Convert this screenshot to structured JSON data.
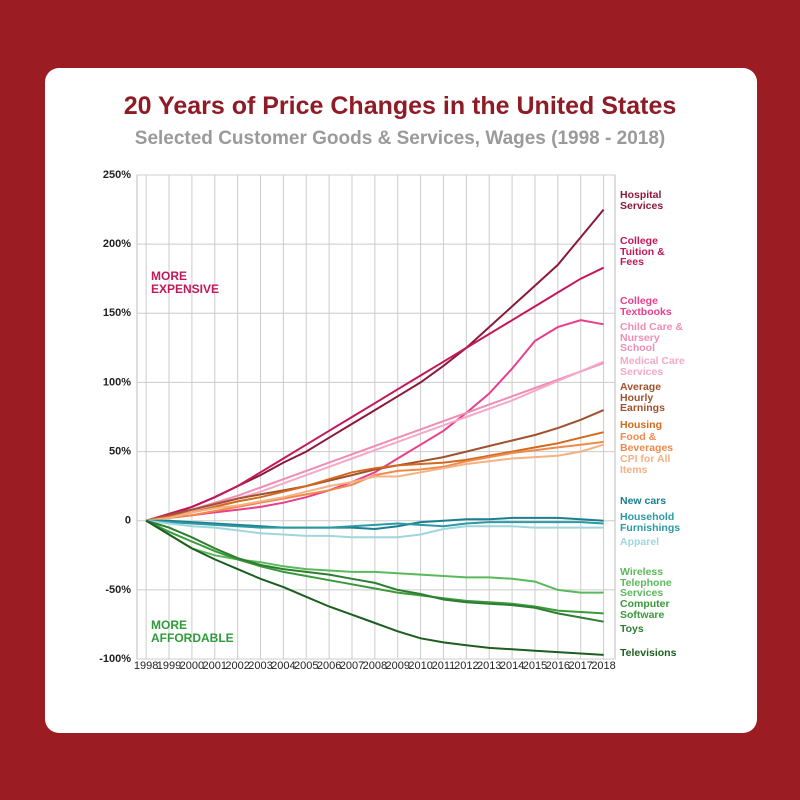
{
  "chart_data": {
    "type": "line",
    "title": "20 Years of Price Changes in the United States",
    "subtitle": "Selected Customer Goods & Services, Wages (1998 - 2018)",
    "annotations": [
      {
        "text": "MORE EXPENSIVE",
        "color": "#c2185b"
      },
      {
        "text": "MORE AFFORDABLE",
        "color": "#2e9a3a"
      }
    ],
    "x": [
      1998,
      1999,
      2000,
      2001,
      2002,
      2003,
      2004,
      2005,
      2006,
      2007,
      2008,
      2009,
      2010,
      2011,
      2012,
      2013,
      2014,
      2015,
      2016,
      2017,
      2018
    ],
    "xlim": [
      1997.6,
      2018.5
    ],
    "xticks": [
      1998,
      1999,
      2000,
      2001,
      2002,
      2003,
      2004,
      2005,
      2006,
      2007,
      2008,
      2009,
      2010,
      2011,
      2012,
      2013,
      2014,
      2015,
      2016,
      2017,
      2018
    ],
    "ylim": [
      -100,
      250
    ],
    "yticks": [
      {
        "value": -100,
        "label": "-100%"
      },
      {
        "value": -50,
        "label": "-50%"
      },
      0,
      {
        "value": 50,
        "label": "50%"
      },
      {
        "value": 100,
        "label": "100%"
      },
      {
        "value": 150,
        "label": "150%"
      },
      {
        "value": 200,
        "label": "200%"
      },
      {
        "value": 250,
        "label": "250%"
      }
    ],
    "grid": true,
    "series": [
      {
        "name": "Hospital Services",
        "color": "#8b1a3a",
        "values": [
          0,
          4,
          10,
          17,
          25,
          33,
          42,
          50,
          60,
          70,
          80,
          90,
          100,
          112,
          125,
          140,
          155,
          170,
          185,
          205,
          225
        ]
      },
      {
        "name": "College Tuition & Fees",
        "color": "#c2185b",
        "values": [
          0,
          5,
          10,
          17,
          25,
          35,
          45,
          55,
          65,
          75,
          85,
          95,
          105,
          115,
          125,
          135,
          145,
          155,
          165,
          175,
          183
        ]
      },
      {
        "name": "College Textbooks",
        "color": "#e83e8c",
        "values": [
          0,
          2,
          4,
          6,
          8,
          10,
          13,
          17,
          22,
          28,
          35,
          45,
          55,
          65,
          78,
          92,
          110,
          130,
          140,
          145,
          142
        ]
      },
      {
        "name": "Child Care & Nursery School",
        "color": "#f08db5",
        "values": [
          0,
          4,
          8,
          13,
          18,
          24,
          30,
          36,
          42,
          48,
          54,
          60,
          66,
          72,
          78,
          84,
          90,
          96,
          102,
          108,
          114
        ]
      },
      {
        "name": "Medical Care Services",
        "color": "#f4a9c8",
        "values": [
          0,
          3,
          7,
          11,
          16,
          21,
          27,
          33,
          39,
          45,
          51,
          57,
          63,
          69,
          75,
          81,
          87,
          94,
          101,
          108,
          115
        ]
      },
      {
        "name": "Average Hourly Earnings",
        "color": "#a0522d",
        "values": [
          0,
          4,
          8,
          12,
          16,
          19,
          22,
          25,
          29,
          33,
          37,
          40,
          43,
          46,
          50,
          54,
          58,
          62,
          67,
          73,
          80
        ]
      },
      {
        "name": "Housing",
        "color": "#d2691e",
        "values": [
          0,
          3,
          6,
          10,
          14,
          17,
          21,
          25,
          30,
          35,
          38,
          40,
          41,
          42,
          44,
          47,
          50,
          53,
          56,
          60,
          64
        ]
      },
      {
        "name": "Food & Beverages",
        "color": "#f08a4b",
        "values": [
          0,
          2,
          4,
          7,
          10,
          13,
          16,
          19,
          22,
          26,
          33,
          36,
          37,
          39,
          43,
          46,
          49,
          51,
          53,
          55,
          57
        ]
      },
      {
        "name": "CPI for All Items",
        "color": "#f4b183",
        "values": [
          0,
          2,
          6,
          9,
          11,
          14,
          17,
          21,
          25,
          28,
          32,
          32,
          35,
          38,
          41,
          43,
          45,
          46,
          47,
          50,
          55
        ]
      },
      {
        "name": "New cars",
        "color": "#1a7f8e",
        "values": [
          0,
          0,
          -1,
          -2,
          -3,
          -4,
          -5,
          -5,
          -5,
          -5,
          -6,
          -4,
          -1,
          0,
          1,
          1,
          2,
          2,
          2,
          1,
          0
        ]
      },
      {
        "name": "Household Furnishings",
        "color": "#2a9aa5",
        "values": [
          0,
          -1,
          -2,
          -3,
          -4,
          -5,
          -5,
          -5,
          -5,
          -4,
          -3,
          -2,
          -3,
          -4,
          -2,
          -1,
          -1,
          -1,
          -1,
          -1,
          -2
        ]
      },
      {
        "name": "Apparel",
        "color": "#9fd6dc",
        "values": [
          0,
          -2,
          -4,
          -5,
          -7,
          -9,
          -10,
          -11,
          -11,
          -12,
          -12,
          -12,
          -10,
          -6,
          -4,
          -4,
          -4,
          -5,
          -5,
          -5,
          -5
        ]
      },
      {
        "name": "Wireless Telephone Services",
        "color": "#5cb85c",
        "values": [
          0,
          -10,
          -20,
          -25,
          -28,
          -30,
          -33,
          -35,
          -36,
          -37,
          -37,
          -38,
          -39,
          -40,
          -41,
          -41,
          -42,
          -44,
          -50,
          -52,
          -52
        ]
      },
      {
        "name": "Computer Software",
        "color": "#3a9a3a",
        "values": [
          0,
          -8,
          -15,
          -22,
          -28,
          -33,
          -37,
          -40,
          -43,
          -46,
          -49,
          -52,
          -54,
          -56,
          -58,
          -59,
          -60,
          -62,
          -65,
          -66,
          -67
        ]
      },
      {
        "name": "Toys",
        "color": "#2e7d32",
        "values": [
          0,
          -5,
          -12,
          -20,
          -27,
          -32,
          -35,
          -37,
          -39,
          -42,
          -45,
          -50,
          -53,
          -57,
          -59,
          -60,
          -61,
          -63,
          -67,
          -70,
          -73
        ]
      },
      {
        "name": "Televisions",
        "color": "#1b5e20",
        "values": [
          0,
          -10,
          -20,
          -28,
          -35,
          -42,
          -48,
          -55,
          -62,
          -68,
          -74,
          -80,
          -85,
          -88,
          -90,
          -92,
          -93,
          -94,
          -95,
          -96,
          -97
        ]
      }
    ]
  }
}
